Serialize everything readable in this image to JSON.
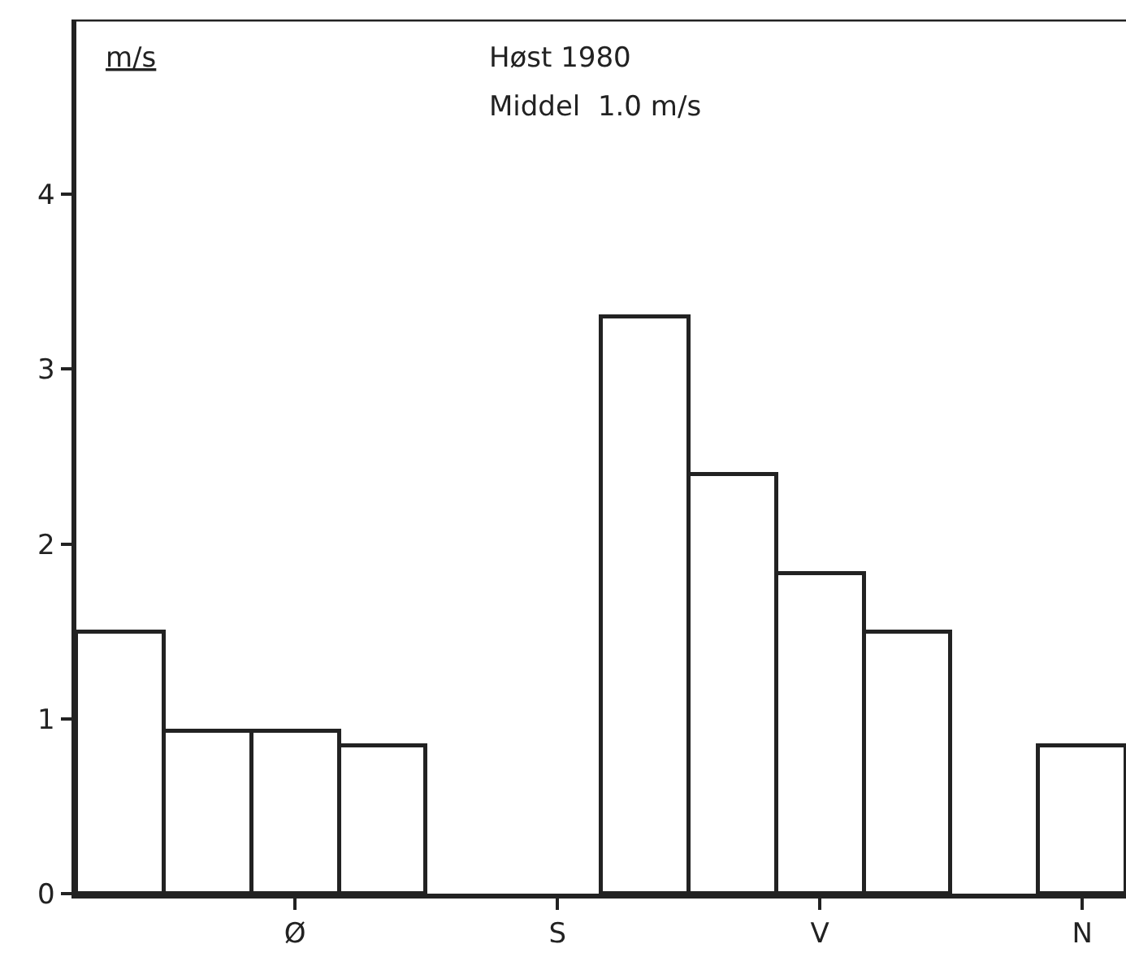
{
  "chart_data": {
    "type": "bar",
    "title": "Høst 1980",
    "subtitle": "Middel  1.0 m/s",
    "ylabel": "m/s",
    "categories": [
      null,
      null,
      "Ø",
      null,
      null,
      "S",
      null,
      null,
      "V",
      null,
      null,
      "N"
    ],
    "values": [
      1.5,
      0.93,
      0.93,
      0.85,
      null,
      null,
      3.3,
      2.4,
      1.83,
      1.5,
      null,
      0.85
    ],
    "color": "#ffffff",
    "ylim": [
      0,
      5
    ],
    "yticks": [
      0,
      1,
      2,
      3,
      4
    ],
    "grid": false
  }
}
